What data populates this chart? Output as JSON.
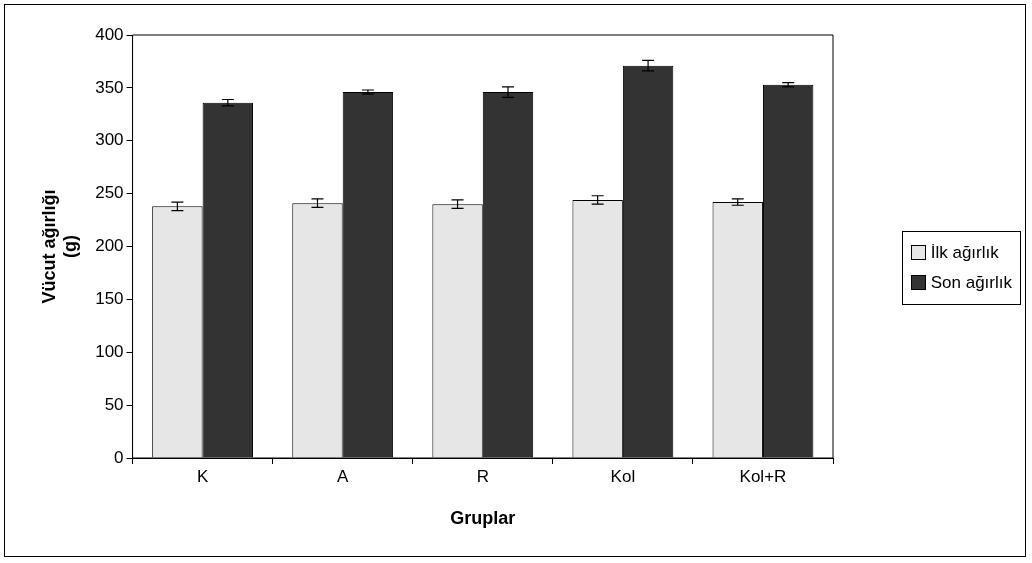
{
  "chart_data": {
    "type": "bar",
    "xlabel": "Gruplar",
    "ylabel": "Vücut ağırlığı (g)",
    "categories": [
      "K",
      "A",
      "R",
      "Kol",
      "Kol+R"
    ],
    "series": [
      {
        "name": "İlk ağırlık",
        "color": "#e6e6e6",
        "values": [
          238,
          241,
          240,
          244,
          242
        ],
        "errors": [
          4,
          4,
          4,
          4,
          3
        ]
      },
      {
        "name": "Son ağırlık",
        "color": "#333333",
        "values": [
          336,
          346,
          346,
          371,
          353
        ],
        "errors": [
          3,
          2,
          5,
          5,
          2
        ]
      }
    ],
    "ylim": [
      0,
      400
    ],
    "yticks": [
      0,
      50,
      100,
      150,
      200,
      250,
      300,
      350,
      400
    ],
    "grid": false,
    "legend": "right"
  }
}
